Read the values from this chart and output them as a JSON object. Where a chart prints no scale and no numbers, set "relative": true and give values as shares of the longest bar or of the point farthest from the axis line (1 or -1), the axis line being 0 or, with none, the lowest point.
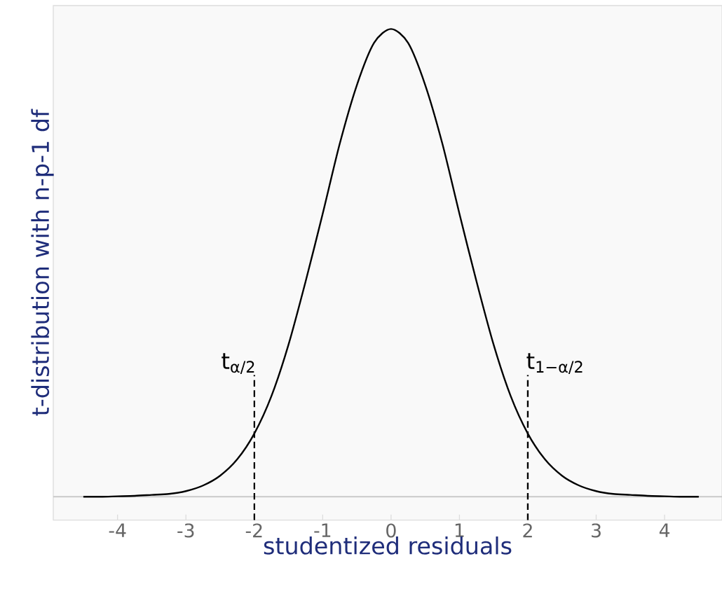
{
  "chart_data": {
    "type": "line",
    "relative": true,
    "xlabel": "studentized residuals",
    "ylabel": "t-distribution with n-p-1 df",
    "series": [
      {
        "color": "#000000",
        "x": [
          -4.5,
          -4.25,
          -4,
          -3.75,
          -3.5,
          -3.25,
          -3,
          -2.75,
          -2.5,
          -2.25,
          -2,
          -1.75,
          -1.5,
          -1.25,
          -1,
          -0.75,
          -0.5,
          -0.25,
          0,
          0.25,
          0.5,
          0.75,
          1,
          1.25,
          1.5,
          1.75,
          2,
          2.25,
          2.5,
          2.75,
          3,
          3.25,
          3.5,
          3.75,
          4,
          4.25,
          4.5
        ],
        "values": [
          0,
          0,
          0.001,
          0.002,
          0.004,
          0.006,
          0.012,
          0.024,
          0.045,
          0.08,
          0.135,
          0.215,
          0.325,
          0.46,
          0.605,
          0.755,
          0.88,
          0.97,
          1,
          0.97,
          0.88,
          0.755,
          0.605,
          0.46,
          0.325,
          0.215,
          0.135,
          0.08,
          0.045,
          0.024,
          0.012,
          0.006,
          0.004,
          0.002,
          0.001,
          0,
          0
        ]
      }
    ],
    "xlim": [
      -4.94,
      4.84
    ],
    "xticks": [
      -4,
      -3,
      -2,
      -1,
      0,
      1,
      2,
      3,
      4
    ],
    "grid": false,
    "marker": "none",
    "line_style": "solid",
    "ref_lines": [
      {
        "axis": "x",
        "value": -2,
        "label": "t$_{α/2}$",
        "color": "#000000",
        "line_style": "dashed"
      },
      {
        "axis": "x",
        "value": 2,
        "label": "t$_{1−α/2}$",
        "color": "#000000",
        "line_style": "dashed"
      }
    ]
  }
}
